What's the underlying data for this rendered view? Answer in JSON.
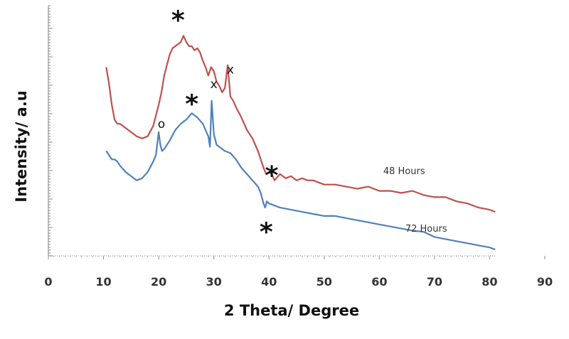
{
  "chart_data": {
    "type": "line",
    "title": "",
    "xlabel": "2 Theta/ Degree",
    "ylabel": "Intensity/ a.u",
    "xlim": [
      0,
      90
    ],
    "xticks": [
      "0",
      "10",
      "20",
      "30",
      "40",
      "50",
      "60",
      "70",
      "80",
      "90"
    ],
    "y_tick_labels_shown": false,
    "grid": false,
    "legend": "none; series labeled inline",
    "series": [
      {
        "name": "48 Hours",
        "color": "#c0504d",
        "x": [
          10.5,
          11,
          11.5,
          12,
          12.5,
          13,
          14,
          15,
          16,
          17,
          18,
          19,
          20,
          20.5,
          21,
          21.5,
          22,
          22.5,
          23,
          23.5,
          24,
          24.5,
          25,
          25.5,
          26,
          26.5,
          27,
          27.5,
          28,
          28.5,
          29,
          29.5,
          30,
          30.5,
          31,
          31.5,
          32,
          32.5,
          33,
          33.5,
          34,
          35,
          36,
          37,
          38,
          38.5,
          39,
          39.5,
          40,
          40.5,
          41,
          42,
          43,
          44,
          45,
          46,
          47,
          48,
          49,
          50,
          52,
          54,
          56,
          58,
          60,
          62,
          64,
          66,
          68,
          70,
          72,
          74,
          76,
          78,
          80,
          81
        ],
        "y": [
          8.0,
          7.2,
          6.2,
          5.5,
          5.3,
          5.3,
          5.1,
          4.9,
          4.7,
          4.6,
          4.7,
          5.2,
          6.2,
          6.8,
          7.6,
          8.1,
          8.6,
          8.9,
          9.0,
          9.1,
          9.2,
          9.5,
          9.2,
          9.0,
          9.0,
          8.8,
          8.9,
          8.7,
          8.3,
          8.0,
          7.6,
          8.0,
          7.8,
          7.3,
          7.1,
          6.8,
          7.0,
          8.1,
          6.6,
          6.4,
          6.1,
          5.6,
          5.0,
          4.6,
          4.0,
          3.6,
          3.2,
          2.9,
          3.0,
          2.9,
          2.6,
          2.9,
          2.7,
          2.8,
          2.6,
          2.7,
          2.6,
          2.6,
          2.5,
          2.4,
          2.4,
          2.3,
          2.2,
          2.3,
          2.1,
          2.1,
          2.0,
          2.1,
          1.9,
          1.8,
          1.8,
          1.6,
          1.5,
          1.3,
          1.2,
          1.1
        ]
      },
      {
        "name": "72 Hours",
        "color": "#4f81bd",
        "x": [
          10.5,
          11,
          11.5,
          12,
          12.5,
          13,
          14,
          15,
          16,
          17,
          18,
          19,
          19.5,
          20,
          20.3,
          20.6,
          21,
          22,
          23,
          24,
          25,
          26,
          27,
          28,
          28.5,
          29,
          29.3,
          29.6,
          30,
          30.5,
          31,
          32,
          33,
          34,
          35,
          36,
          37,
          38,
          38.5,
          39,
          39.3,
          39.6,
          40,
          41,
          42,
          44,
          46,
          48,
          50,
          52,
          54,
          56,
          58,
          60,
          62,
          64,
          66,
          68,
          70,
          72,
          74,
          76,
          78,
          80,
          81
        ],
        "y": [
          4.0,
          3.8,
          3.6,
          3.6,
          3.5,
          3.3,
          3.0,
          2.8,
          2.6,
          2.7,
          3.0,
          3.5,
          3.8,
          4.9,
          4.3,
          4.0,
          4.1,
          4.5,
          5.0,
          5.3,
          5.5,
          5.8,
          5.6,
          5.3,
          5.0,
          4.7,
          4.2,
          6.4,
          4.8,
          4.3,
          4.2,
          4.0,
          3.9,
          3.6,
          3.2,
          2.9,
          2.6,
          2.3,
          2.0,
          1.5,
          1.3,
          1.6,
          1.5,
          1.4,
          1.3,
          1.2,
          1.1,
          1.0,
          0.9,
          0.9,
          0.8,
          0.7,
          0.6,
          0.5,
          0.4,
          0.3,
          0.2,
          0.15,
          -0.1,
          -0.2,
          -0.3,
          -0.4,
          -0.5,
          -0.6,
          -0.7
        ]
      }
    ],
    "series_labels": [
      {
        "text": "48 Hours",
        "x": 64.5,
        "y": 2.9
      },
      {
        "text": "72 Hours",
        "x": 68.5,
        "y": 0.15
      }
    ],
    "annotations": [
      {
        "text": "*",
        "x": 23.5,
        "y": 10.3,
        "kind": "star"
      },
      {
        "text": "*",
        "x": 26,
        "y": 6.3,
        "kind": "star"
      },
      {
        "text": "*",
        "x": 40.5,
        "y": 2.9,
        "kind": "star"
      },
      {
        "text": "*",
        "x": 39.5,
        "y": 0.2,
        "kind": "star"
      },
      {
        "text": "o",
        "x": 20.5,
        "y": 5.1,
        "kind": "text"
      },
      {
        "text": "x",
        "x": 30,
        "y": 7.0,
        "kind": "text"
      },
      {
        "text": "x",
        "x": 33,
        "y": 7.7,
        "kind": "text"
      }
    ]
  }
}
